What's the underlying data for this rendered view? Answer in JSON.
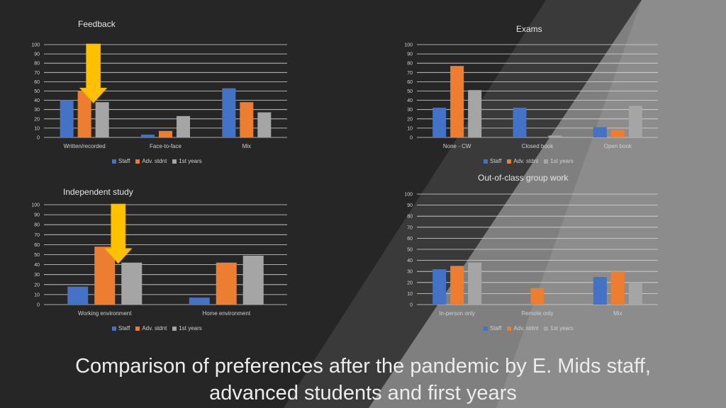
{
  "page": {
    "title_line1": "Comparison of preferences after the pandemic by E. Mids staff,",
    "title_line2": "advanced students and first years"
  },
  "colors": {
    "staff": "#4472c4",
    "adv": "#ed7d31",
    "first": "#a5a5a5",
    "arrow": "#ffc000"
  },
  "chart_data": [
    {
      "id": "feedback",
      "type": "bar",
      "title": "Feedback",
      "categories": [
        "Written/recorded",
        "Face-to-face",
        "Mix"
      ],
      "series": [
        {
          "name": "Staff",
          "values": [
            40,
            3,
            53
          ]
        },
        {
          "name": "Adv. stdnt",
          "values": [
            50,
            7,
            38
          ]
        },
        {
          "name": "1st years",
          "values": [
            38,
            23,
            27
          ]
        }
      ],
      "ylim": [
        0,
        100
      ],
      "yticks": [
        0,
        10,
        20,
        30,
        40,
        50,
        60,
        70,
        80,
        90,
        100
      ],
      "grid": true,
      "legend": "bottom",
      "annotation": "arrow pointing to 1st years Written/recorded bar"
    },
    {
      "id": "exams",
      "type": "bar",
      "title": "Exams",
      "categories": [
        "None - CW",
        "Closed book",
        "Open book"
      ],
      "series": [
        {
          "name": "Staff",
          "values": [
            32,
            32,
            11
          ]
        },
        {
          "name": "Adv. stdnt",
          "values": [
            77,
            0,
            8
          ]
        },
        {
          "name": "1st years",
          "values": [
            51,
            2,
            34
          ]
        }
      ],
      "ylim": [
        0,
        100
      ],
      "yticks": [
        0,
        10,
        20,
        30,
        40,
        50,
        60,
        70,
        80,
        90,
        100
      ],
      "grid": true,
      "legend": "bottom"
    },
    {
      "id": "independent",
      "type": "bar",
      "title": "Independent study",
      "categories": [
        "Working environment",
        "Home environment"
      ],
      "series": [
        {
          "name": "Staff",
          "values": [
            18,
            7
          ]
        },
        {
          "name": "Adv. stdnt",
          "values": [
            58,
            42
          ]
        },
        {
          "name": "1st years",
          "values": [
            42,
            49
          ]
        }
      ],
      "ylim": [
        0,
        100
      ],
      "yticks": [
        0,
        10,
        20,
        30,
        40,
        50,
        60,
        70,
        80,
        90,
        100
      ],
      "grid": true,
      "legend": "bottom",
      "annotation": "arrow pointing to 1st years Working environment bar"
    },
    {
      "id": "groupwork",
      "type": "bar",
      "title": "Out-of-class group work",
      "categories": [
        "In-person only",
        "Remote only",
        "Mix"
      ],
      "series": [
        {
          "name": "Staff",
          "values": [
            32,
            0,
            25
          ]
        },
        {
          "name": "Adv. stdnt",
          "values": [
            35,
            15,
            30
          ]
        },
        {
          "name": "1st years",
          "values": [
            38,
            0,
            20
          ]
        }
      ],
      "ylim": [
        0,
        100
      ],
      "yticks": [
        0,
        10,
        20,
        30,
        40,
        50,
        60,
        70,
        80,
        90,
        100
      ],
      "grid": true,
      "legend": "bottom"
    }
  ]
}
